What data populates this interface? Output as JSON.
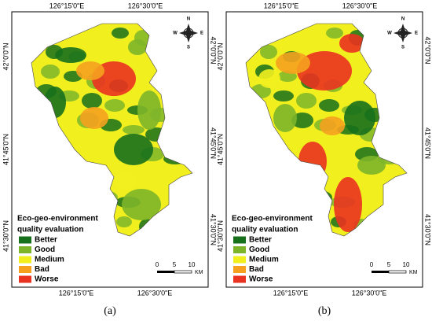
{
  "panels": [
    {
      "caption": "(a)",
      "top_labels": [
        "126°15'0\"E",
        "126°30'0\"E"
      ],
      "bottom_labels": [
        "126°15'0\"E",
        "126°30'0\"E"
      ],
      "left_labels": [
        "42°0'0\"N",
        "41°45'0\"N",
        "41°30'0\"N"
      ],
      "right_labels": [
        "42°0'0\"N",
        "41°45'0\"N",
        "41°30'0\"N"
      ],
      "compass": {
        "n": "N",
        "e": "E",
        "s": "S",
        "w": "W"
      },
      "scale": {
        "ticks": [
          "0",
          "5",
          "10"
        ],
        "unit": "KM"
      },
      "legend": {
        "title": [
          "Eco-geo-environment",
          "quality evaluation"
        ],
        "items": [
          {
            "name": "Better",
            "color": "#17701c"
          },
          {
            "name": "Good",
            "color": "#7db52a"
          },
          {
            "name": "Medium",
            "color": "#f2ef1f"
          },
          {
            "name": "Bad",
            "color": "#f5a11f"
          },
          {
            "name": "Worse",
            "color": "#ea3220"
          }
        ]
      }
    },
    {
      "caption": "(b)",
      "top_labels": [
        "126°15'0\"E",
        "126°30'0\"E"
      ],
      "bottom_labels": [
        "126°15'0\"E",
        "126°30'0\"E"
      ],
      "left_labels": [
        "42°0'0\"N",
        "41°45'0\"N",
        "41°30'0\"N"
      ],
      "right_labels": [
        "42°0'0\"N",
        "41°45'0\"N",
        "41°30'0\"N"
      ],
      "compass": {
        "n": "N",
        "e": "E",
        "s": "S",
        "w": "W"
      },
      "scale": {
        "ticks": [
          "0",
          "5",
          "10"
        ],
        "unit": "KM"
      },
      "legend": {
        "title": [
          "Eco-geo-environment",
          "quality evaluation"
        ],
        "items": [
          {
            "name": "Better",
            "color": "#17701c"
          },
          {
            "name": "Good",
            "color": "#7db52a"
          },
          {
            "name": "Medium",
            "color": "#f2ef1f"
          },
          {
            "name": "Bad",
            "color": "#f5a11f"
          },
          {
            "name": "Worse",
            "color": "#ea3220"
          }
        ]
      }
    }
  ]
}
